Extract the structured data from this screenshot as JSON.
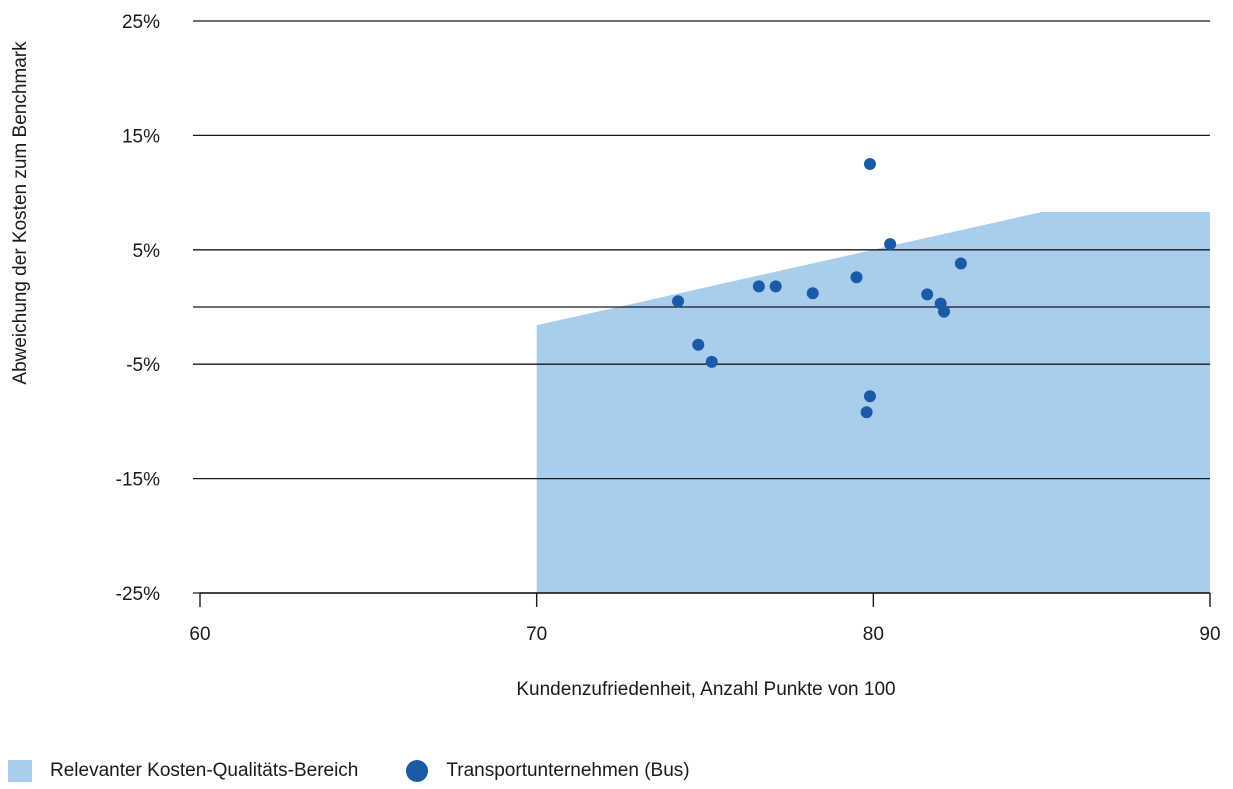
{
  "chart_data": {
    "type": "scatter",
    "title": "",
    "xlabel": "Kundenzufriedenheit, Anzahl Punkte von 100",
    "ylabel": "Abweichung der Kosten zum Benchmark",
    "xlim": [
      60,
      90
    ],
    "ylim": [
      -25,
      25
    ],
    "x_ticks": [
      60,
      70,
      80,
      90
    ],
    "x_tick_labels": [
      "60",
      "70",
      "80",
      "90"
    ],
    "y_ticks": [
      25,
      15,
      5,
      0,
      -5,
      -15,
      -25
    ],
    "y_tick_labels": [
      "25%",
      "15%",
      "5%",
      "",
      "-5%",
      "-15%",
      "-25%"
    ],
    "grid": "horizontal",
    "legend_position": "bottom-left",
    "area_series": {
      "name": "Relevanter Kosten-Qualitäts-Bereich",
      "color": "#a9cdec",
      "upper": [
        [
          70,
          -1.6
        ],
        [
          85,
          8.3
        ],
        [
          90,
          8.3
        ]
      ],
      "lower": -25
    },
    "series": [
      {
        "name": "Transportunternehmen (Bus)",
        "color": "#1b5aa6",
        "points": [
          [
            79.9,
            12.5
          ],
          [
            80.5,
            5.5
          ],
          [
            82.6,
            3.8
          ],
          [
            79.5,
            2.6
          ],
          [
            76.6,
            1.8
          ],
          [
            77.1,
            1.8
          ],
          [
            78.2,
            1.2
          ],
          [
            81.6,
            1.1
          ],
          [
            82.0,
            0.3
          ],
          [
            82.1,
            -0.4
          ],
          [
            74.2,
            0.5
          ],
          [
            74.8,
            -3.3
          ],
          [
            75.2,
            -4.8
          ],
          [
            79.9,
            -7.8
          ],
          [
            79.8,
            -9.2
          ]
        ]
      }
    ]
  },
  "legend": {
    "area_label": "Relevanter Kosten-Qualitäts-Bereich",
    "points_label": "Transportunternehmen (Bus)"
  }
}
